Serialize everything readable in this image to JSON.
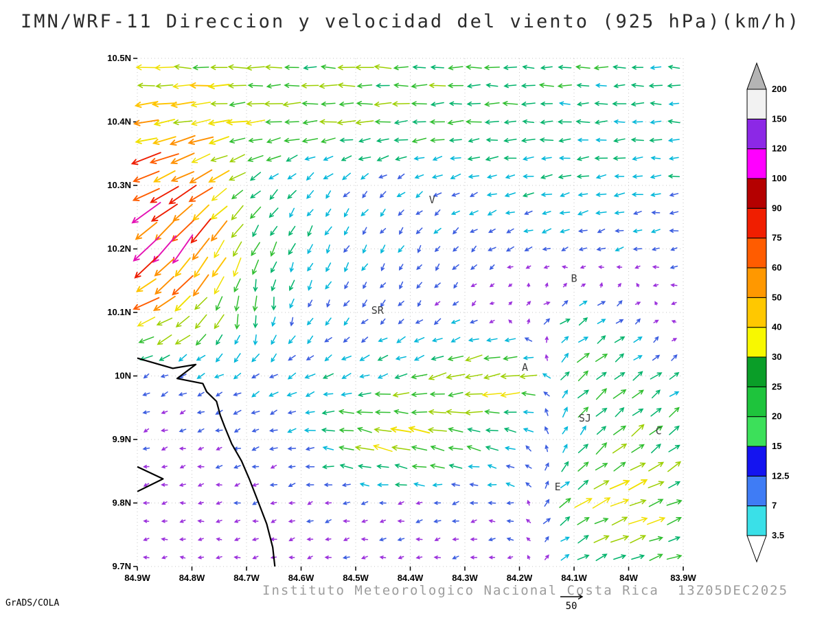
{
  "header": {
    "title": "IMN/WRF-11 Direccion y velocidad del viento (925 hPa)(km/h)"
  },
  "footer": {
    "institute": "Instituto Meteorologico Nacional Costa Rica  13Z05DEC2025",
    "credit": "GrADS/COLA"
  },
  "chart_data": {
    "type": "quiver",
    "title": "IMN/WRF-11 Direccion y velocidad del viento (925 hPa)(km/h)",
    "xlabel": "",
    "ylabel": "",
    "units": "km/h",
    "datetime": "13Z05DEC2025",
    "grid": "dotted",
    "x_ticks": [
      "84.9W",
      "84.8W",
      "84.7W",
      "84.6W",
      "84.5W",
      "84.4W",
      "84.3W",
      "84.2W",
      "84.1W",
      "84W",
      "83.9W"
    ],
    "y_ticks": [
      "9.7N",
      "9.8N",
      "9.9N",
      "10N",
      "10.1N",
      "10.2N",
      "10.3N",
      "10.4N",
      "10.5N"
    ],
    "lon_range_w": [
      84.9,
      83.9
    ],
    "lat_range_n": [
      9.7,
      10.5
    ],
    "colorbar": {
      "levels_kmh": [
        3.5,
        7,
        12.5,
        15,
        20,
        25,
        30,
        40,
        50,
        60,
        75,
        90,
        100,
        120,
        150,
        200
      ],
      "label_values": [
        "3.5",
        "7",
        "12.5",
        "15",
        "20",
        "25",
        "30",
        "40",
        "50",
        "60",
        "75",
        "90",
        "100",
        "120",
        "150",
        "200"
      ],
      "colors": [
        "#3ae0e8",
        "#3f7cf5",
        "#1414f0",
        "#3ce05a",
        "#1ec43c",
        "#0a9e28",
        "#f8f800",
        "#ffc800",
        "#ff9800",
        "#ff5c00",
        "#f01e00",
        "#b40000",
        "#ff00ff",
        "#8c28e6",
        "#f2f2f2"
      ],
      "under_color": "#ffffff",
      "over_color": "#b4b4b4"
    },
    "arrow_palette": [
      {
        "max_kmh": 8,
        "color": "#9b30dc"
      },
      {
        "max_kmh": 14,
        "color": "#3a5ce0"
      },
      {
        "max_kmh": 20,
        "color": "#00b7d9"
      },
      {
        "max_kmh": 27,
        "color": "#00b36b"
      },
      {
        "max_kmh": 34,
        "color": "#2fbe2f"
      },
      {
        "max_kmh": 41,
        "color": "#9ccf00"
      },
      {
        "max_kmh": 48,
        "color": "#f0e000"
      },
      {
        "max_kmh": 55,
        "color": "#ffc400"
      },
      {
        "max_kmh": 63,
        "color": "#ff9000"
      },
      {
        "max_kmh": 72,
        "color": "#ff5d00"
      },
      {
        "max_kmh": 82,
        "color": "#ee1c00"
      },
      {
        "max_kmh": 9999,
        "color": "#e412b4"
      }
    ],
    "wind_grid": {
      "lons_w": [
        84.9,
        84.8,
        84.7,
        84.6,
        84.5,
        84.4,
        84.3,
        84.2,
        84.1,
        84.0,
        83.9
      ],
      "lats_n": [
        10.5,
        10.4,
        10.3,
        10.2,
        10.1,
        10.0,
        9.9,
        9.8,
        9.7
      ],
      "uv_kmh": [
        [
          [
            -35,
            2
          ],
          [
            -40,
            3
          ],
          [
            -33,
            1
          ],
          [
            -30,
            0
          ],
          [
            -34,
            2
          ],
          [
            -30,
            1
          ],
          [
            -28,
            0
          ],
          [
            -26,
            0
          ],
          [
            -25,
            1
          ],
          [
            -24,
            0
          ],
          [
            -22,
            0
          ]
        ],
        [
          [
            -52,
            -8
          ],
          [
            -48,
            -10
          ],
          [
            -38,
            -4
          ],
          [
            -33,
            -2
          ],
          [
            -34,
            -3
          ],
          [
            -30,
            -2
          ],
          [
            -28,
            -2
          ],
          [
            -25,
            -1
          ],
          [
            -23,
            0
          ],
          [
            -22,
            -1
          ],
          [
            -20,
            0
          ]
        ],
        [
          [
            -68,
            -28
          ],
          [
            -55,
            -32
          ],
          [
            -22,
            -16
          ],
          [
            -11,
            -13
          ],
          [
            -9,
            -10
          ],
          [
            -11,
            -7
          ],
          [
            -15,
            -5
          ],
          [
            -18,
            -4
          ],
          [
            -20,
            -4
          ],
          [
            -18,
            -2
          ],
          [
            -16,
            -2
          ]
        ],
        [
          [
            -58,
            -55
          ],
          [
            -42,
            -60
          ],
          [
            -16,
            -30
          ],
          [
            -9,
            -18
          ],
          [
            -7,
            -13
          ],
          [
            -6,
            -10
          ],
          [
            -8,
            -8
          ],
          [
            -11,
            -5
          ],
          [
            -12,
            -4
          ],
          [
            -12,
            -3
          ],
          [
            -10,
            -2
          ]
        ],
        [
          [
            -52,
            -18
          ],
          [
            -32,
            -30
          ],
          [
            2,
            -30
          ],
          [
            -6,
            -13
          ],
          [
            -7,
            -9
          ],
          [
            -6,
            -7
          ],
          [
            -7,
            -5
          ],
          [
            6,
            4
          ],
          [
            16,
            10
          ],
          [
            10,
            6
          ],
          [
            -8,
            -2
          ]
        ],
        [
          [
            -9,
            -4
          ],
          [
            -11,
            -6
          ],
          [
            -13,
            -8
          ],
          [
            -15,
            -8
          ],
          [
            -17,
            -7
          ],
          [
            -26,
            -8
          ],
          [
            -40,
            -9
          ],
          [
            -44,
            -6
          ],
          [
            24,
            20
          ],
          [
            20,
            15
          ],
          [
            15,
            10
          ]
        ],
        [
          [
            -7,
            -2
          ],
          [
            -7,
            -2
          ],
          [
            -9,
            -3
          ],
          [
            -13,
            -2
          ],
          [
            -38,
            9
          ],
          [
            -44,
            10
          ],
          [
            -30,
            8
          ],
          [
            -15,
            5
          ],
          [
            10,
            16
          ],
          [
            26,
            20
          ],
          [
            20,
            18
          ]
        ],
        [
          [
            -6,
            -1
          ],
          [
            -6,
            -1
          ],
          [
            -7,
            -2
          ],
          [
            -7,
            -2
          ],
          [
            -8,
            -2
          ],
          [
            -8,
            -2
          ],
          [
            -9,
            -2
          ],
          [
            -10,
            2
          ],
          [
            28,
            20
          ],
          [
            44,
            16
          ],
          [
            26,
            12
          ]
        ],
        [
          [
            -6,
            0
          ],
          [
            -6,
            0
          ],
          [
            -6,
            -1
          ],
          [
            -6,
            -1
          ],
          [
            -7,
            -1
          ],
          [
            -7,
            -1
          ],
          [
            -7,
            -1
          ],
          [
            -5,
            0
          ],
          [
            14,
            8
          ],
          [
            28,
            10
          ],
          [
            24,
            8
          ]
        ]
      ]
    },
    "stations": [
      {
        "label": "V",
        "lon_w": 84.36,
        "lat_n": 10.272
      },
      {
        "label": "B",
        "lon_w": 84.1,
        "lat_n": 10.148
      },
      {
        "label": "SR",
        "lon_w": 84.46,
        "lat_n": 10.098
      },
      {
        "label": "A",
        "lon_w": 84.19,
        "lat_n": 10.008
      },
      {
        "label": "SJ",
        "lon_w": 84.08,
        "lat_n": 9.928
      },
      {
        "label": "C",
        "lon_w": 83.945,
        "lat_n": 9.908
      },
      {
        "label": "E",
        "lon_w": 84.13,
        "lat_n": 9.82
      }
    ],
    "coastline_lonlat_w_n": [
      [
        [
          84.9,
          10.028
        ],
        [
          84.835,
          10.012
        ],
        [
          84.793,
          10.018
        ],
        [
          84.827,
          9.996
        ],
        [
          84.78,
          9.988
        ],
        [
          84.773,
          9.975
        ],
        [
          84.755,
          9.96
        ],
        [
          84.748,
          9.938
        ],
        [
          84.74,
          9.92
        ],
        [
          84.727,
          9.893
        ],
        [
          84.709,
          9.866
        ],
        [
          84.695,
          9.838
        ],
        [
          84.68,
          9.805
        ],
        [
          84.663,
          9.767
        ],
        [
          84.652,
          9.73
        ],
        [
          84.648,
          9.7
        ]
      ],
      [
        [
          84.9,
          9.857
        ],
        [
          84.853,
          9.838
        ],
        [
          84.9,
          9.818
        ]
      ]
    ],
    "reference_vector": {
      "value_kmh": 50,
      "label": "50"
    }
  }
}
